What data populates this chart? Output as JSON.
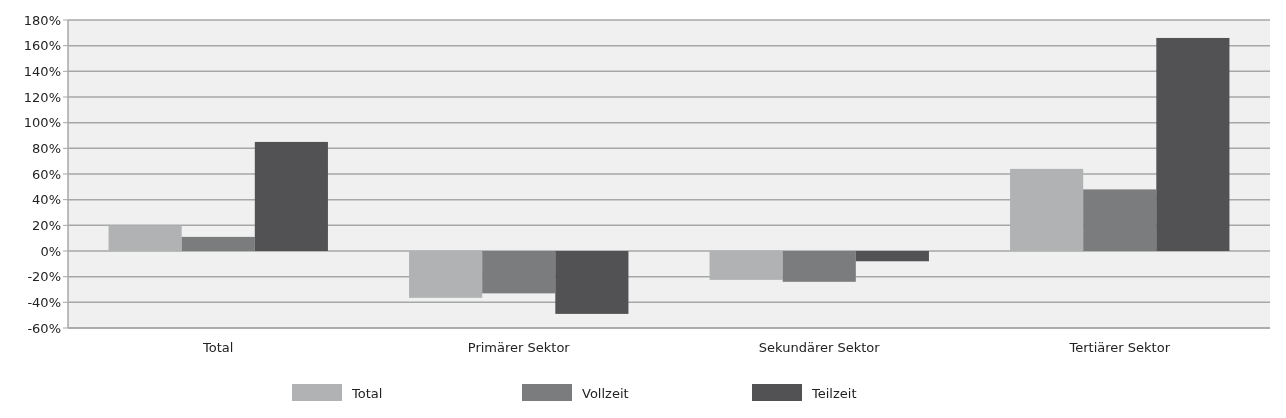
{
  "chart_data": {
    "type": "bar",
    "categories": [
      "Total",
      "Primärer Sektor",
      "Sekundärer Sektor",
      "Tertiärer Sektor"
    ],
    "series": [
      {
        "name": "Total",
        "color": "#b1b2b3",
        "values": [
          20,
          -36.5,
          -22.5,
          64
        ]
      },
      {
        "name": "Vollzeit",
        "color": "#7b7c7e",
        "values": [
          11,
          -33,
          -24,
          48
        ]
      },
      {
        "name": "Teilzeit",
        "color": "#525254",
        "values": [
          85,
          -49,
          -8,
          166
        ]
      }
    ],
    "ylim": [
      -60,
      180
    ],
    "yticks": [
      {
        "value": -60,
        "label": "-60%"
      },
      {
        "value": -40,
        "label": "-40%"
      },
      {
        "value": -20,
        "label": "-20%"
      },
      {
        "value": 0,
        "label": "0%"
      },
      {
        "value": 20,
        "label": "20%"
      },
      {
        "value": 40,
        "label": "40%"
      },
      {
        "value": 60,
        "label": "60%"
      },
      {
        "value": 80,
        "label": "80%"
      },
      {
        "value": 100,
        "label": "100%"
      },
      {
        "value": 120,
        "label": "120%"
      },
      {
        "value": 140,
        "label": "140%"
      },
      {
        "value": 160,
        "label": "160%"
      },
      {
        "value": 180,
        "label": "180%"
      }
    ],
    "grid": "y",
    "legend": "bottom"
  }
}
